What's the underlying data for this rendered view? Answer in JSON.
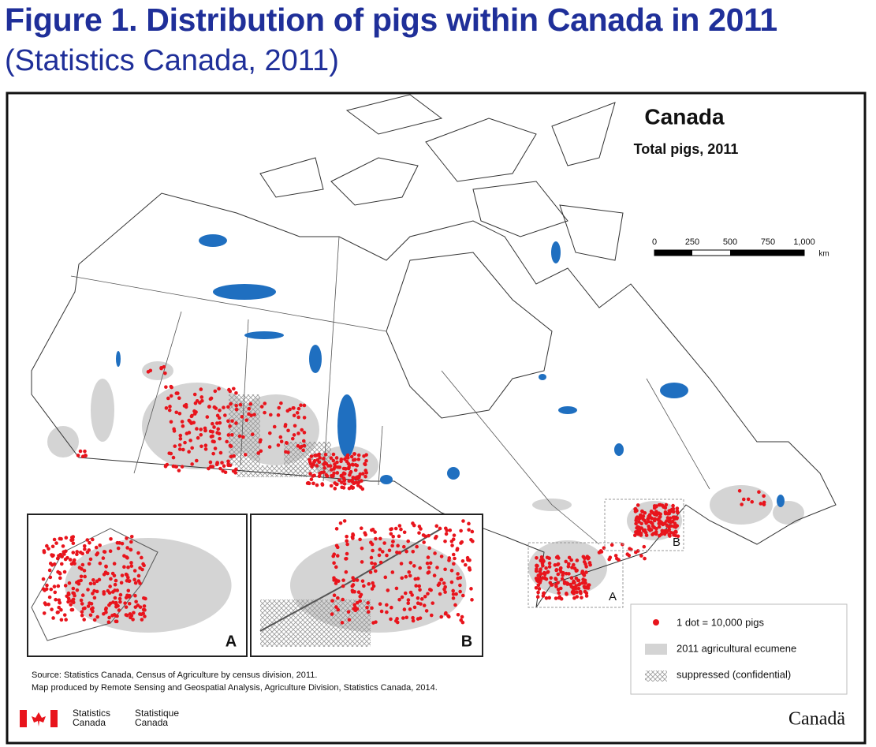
{
  "header": {
    "title": "Figure 1. Distribution of pigs within Canada in 2011",
    "subtitle": "(Statistics Canada, 2011)"
  },
  "map": {
    "title": "Canada",
    "subtitle": "Total pigs, 2011",
    "scale_bar": {
      "labels": [
        "0",
        "250",
        "500",
        "750",
        "1,000"
      ],
      "unit": "km"
    },
    "region_labels": [
      "A",
      "B"
    ],
    "insets": [
      {
        "label": "A"
      },
      {
        "label": "B"
      }
    ],
    "legend": [
      "1 dot = 10,000 pigs",
      "2011 agricultural ecumene",
      "suppressed (confidential)"
    ],
    "source": [
      "Source: Statistics Canada, Census of Agriculture by census division, 2011.",
      "Map produced by Remote Sensing and Geospatial Analysis, Agriculture Division, Statistics Canada, 2014."
    ],
    "footer": {
      "agency_en": [
        "Statistics",
        "Canada"
      ],
      "agency_fr": [
        "Statistique",
        "Canada"
      ],
      "wordmark": "Canadä"
    }
  }
}
